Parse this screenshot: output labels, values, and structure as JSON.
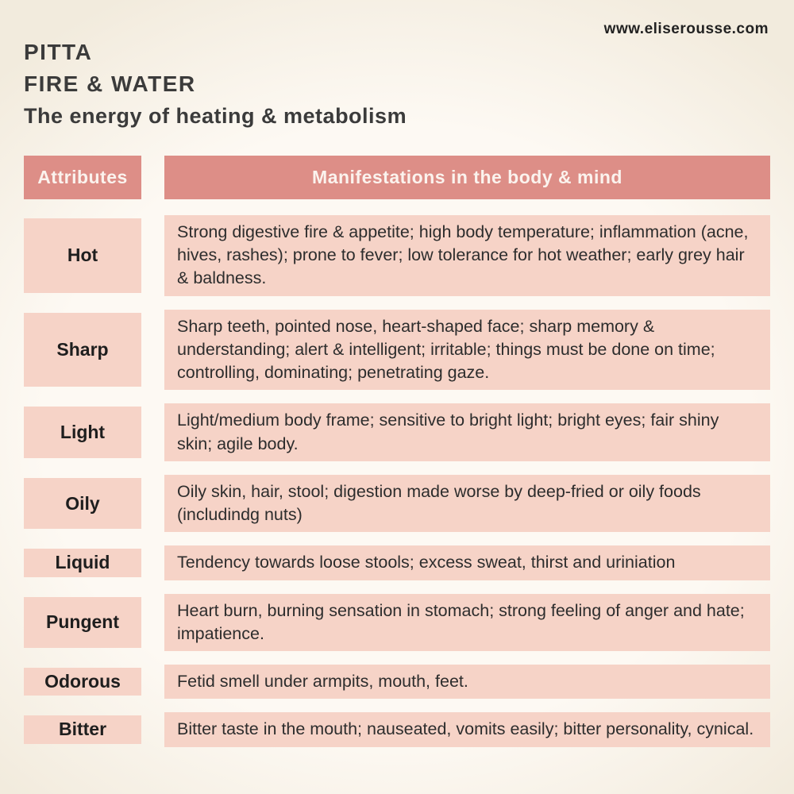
{
  "site": {
    "url": "www.eliserousse.com"
  },
  "header": {
    "title": "PITTA",
    "subtitle": "FIRE & WATER",
    "tagline": "The energy of heating & metabolism"
  },
  "table": {
    "col1_header": "Attributes",
    "col2_header": "Manifestations in the body & mind",
    "rows": [
      {
        "attribute": "Hot",
        "manifestation": "Strong digestive fire & appetite; high body temperature; inflammation (acne, hives, rashes); prone to fever; low tolerance for hot weather; early grey hair & baldness."
      },
      {
        "attribute": "Sharp",
        "manifestation": "Sharp teeth, pointed nose, heart-shaped face; sharp memory & understanding; alert & intelligent; irritable; things must be done on time; controlling, dominating; penetrating gaze."
      },
      {
        "attribute": "Light",
        "manifestation": "Light/medium body frame; sensitive to bright light; bright eyes; fair shiny skin; agile body."
      },
      {
        "attribute": "Oily",
        "manifestation": "Oily skin, hair, stool; digestion made worse by deep-fried or oily foods (includindg nuts)"
      },
      {
        "attribute": "Liquid",
        "manifestation": "Tendency towards loose stools; excess sweat, thirst and uriniation"
      },
      {
        "attribute": "Pungent",
        "manifestation": "Heart burn, burning sensation in stomach; strong feeling of anger and hate; impatience."
      },
      {
        "attribute": "Odorous",
        "manifestation": "Fetid smell under armpits, mouth, feet."
      },
      {
        "attribute": "Bitter",
        "manifestation": "Bitter taste in the mouth; nauseated, vomits easily; bitter personality, cynical."
      }
    ]
  },
  "colors": {
    "background_outer": "#f2ebdd",
    "background_inner": "#fdf9f3",
    "header_bg": "#dd8e87",
    "header_text": "#fbf3ee",
    "cell_bg": "#f6d3c7",
    "heading_text": "#3b3b3b",
    "body_text": "#2d2d2d"
  }
}
